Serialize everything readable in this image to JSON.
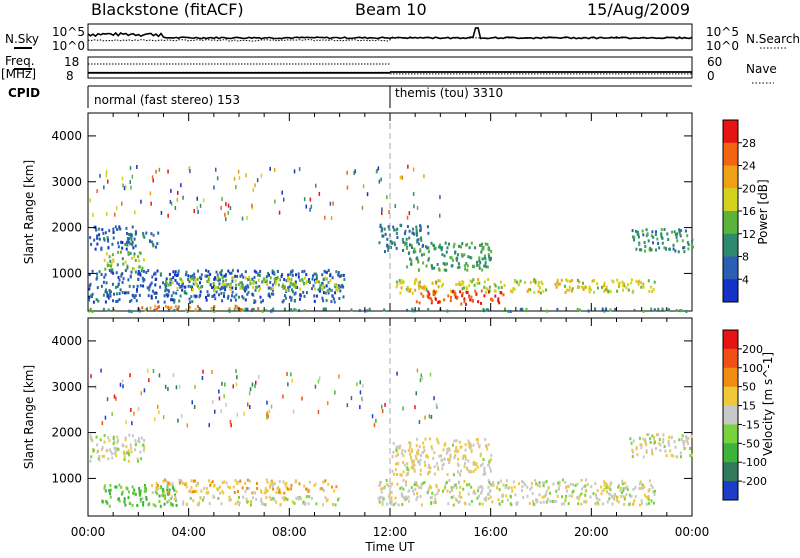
{
  "header": {
    "station": "Blackstone (fitACF)",
    "beam": "Beam 10",
    "date": "15/Aug/2009"
  },
  "noise_panel": {
    "left_label": "N.Sky",
    "right_label": "N.Search",
    "left_ticks": [
      "10^5",
      "10^0"
    ],
    "right_ticks": [
      "10^5",
      "10^0"
    ]
  },
  "freq_panel": {
    "left_label_top": "Freq.",
    "left_label_bottom": "[MHz]",
    "left_ticks": [
      "18",
      "8"
    ],
    "right_label": "Nave",
    "right_ticks": [
      "60",
      "0"
    ]
  },
  "cpid_panel": {
    "label": "CPID",
    "modes": [
      {
        "name": "normal (fast stereo) 153",
        "start_hour": 0
      },
      {
        "name": "themis (tou) 3310",
        "start_hour": 12
      }
    ]
  },
  "power_panel": {
    "ylabel": "Slant Range [km]",
    "yticks": [
      "1000",
      "2000",
      "3000",
      "4000"
    ],
    "colorbar_label": "Power [dB]",
    "colorbar_ticks": [
      "4",
      "8",
      "12",
      "16",
      "20",
      "24",
      "28"
    ],
    "colors": [
      "#1432c8",
      "#2a5fb4",
      "#2e8a6e",
      "#5ab43c",
      "#d2d21e",
      "#f0a014",
      "#f06414",
      "#e61414"
    ]
  },
  "velocity_panel": {
    "ylabel": "Slant Range [km]",
    "yticks": [
      "1000",
      "2000",
      "3000",
      "4000"
    ],
    "colorbar_label": "Velocity [m s^-1]",
    "colorbar_ticks": [
      "200",
      "100",
      "50",
      "15",
      "-15",
      "-50",
      "-100",
      "-200"
    ],
    "colors": [
      "#1e3cc8",
      "#2e7a5a",
      "#3cb43c",
      "#78d23c",
      "#c8c8c8",
      "#f0c83c",
      "#f08c14",
      "#f05014",
      "#e61414"
    ]
  },
  "time_axis": {
    "label": "Time UT",
    "ticks": [
      "00:00",
      "04:00",
      "08:00",
      "12:00",
      "16:00",
      "20:00",
      "00:00"
    ]
  },
  "chart_data": [
    {
      "type": "line",
      "title": "Blackstone (fitACF) Beam 10 15/Aug/2009",
      "series": [
        {
          "name": "N.Sky"
        },
        {
          "name": "N.Search"
        }
      ],
      "ylabel": "N.Sky",
      "xlim": [
        0,
        24
      ],
      "yscale": "log",
      "ylim": [
        1,
        100000
      ]
    },
    {
      "type": "line",
      "series": [
        {
          "name": "Freq.",
          "segments": [
            {
              "x": [
                0,
                12
              ],
              "y": 10
            },
            {
              "x": [
                12,
                24
              ],
              "y": 10.5
            }
          ]
        },
        {
          "name": "Nave",
          "segments": [
            {
              "x": [
                0,
                12
              ],
              "y": 45
            },
            {
              "x": [
                12,
                24
              ],
              "y": 8
            }
          ]
        }
      ],
      "ylim": [
        8,
        18
      ],
      "xlim": [
        0,
        24
      ]
    },
    {
      "type": "heatmap",
      "ylabel": "Slant Range [km]",
      "xlabel": "Time UT",
      "xlim": [
        0,
        24
      ],
      "ylim": [
        180,
        4500
      ],
      "colorbar": {
        "label": "Power [dB]",
        "range": [
          0,
          32
        ]
      },
      "regions": [
        {
          "t": [
            0.0,
            1.8
          ],
          "r": [
            1550,
            2050
          ],
          "v": 6
        },
        {
          "t": [
            0.6,
            2.2
          ],
          "r": [
            1100,
            1500
          ],
          "v": 14
        },
        {
          "t": [
            1.5,
            2.8
          ],
          "r": [
            1600,
            1950
          ],
          "v": 8
        },
        {
          "t": [
            0.0,
            10.2
          ],
          "r": [
            400,
            1100
          ],
          "v": 6
        },
        {
          "t": [
            3.0,
            10.0
          ],
          "r": [
            650,
            950
          ],
          "v": 16
        },
        {
          "t": [
            2.0,
            7.0
          ],
          "r": [
            230,
            320
          ],
          "v": 24
        },
        {
          "t": [
            11.5,
            13.5
          ],
          "r": [
            1500,
            2100
          ],
          "v": 8
        },
        {
          "t": [
            12.5,
            16.0
          ],
          "r": [
            1100,
            1700
          ],
          "v": 12
        },
        {
          "t": [
            12.2,
            22.5
          ],
          "r": [
            600,
            900
          ],
          "v": 18
        },
        {
          "t": [
            13.0,
            16.5
          ],
          "r": [
            350,
            650
          ],
          "v": 28
        },
        {
          "t": [
            21.5,
            24.0
          ],
          "r": [
            1500,
            2000
          ],
          "v": 10
        },
        {
          "t": [
            0.0,
            24.0
          ],
          "r": [
            200,
            260
          ],
          "v": 10
        }
      ]
    },
    {
      "type": "heatmap",
      "ylabel": "Slant Range [km]",
      "xlabel": "Time UT",
      "xlim": [
        0,
        24
      ],
      "ylim": [
        180,
        4500
      ],
      "colorbar": {
        "label": "Velocity [m s^-1]",
        "range": [
          -250,
          250
        ]
      },
      "regions": [
        {
          "t": [
            0.0,
            2.2
          ],
          "r": [
            1400,
            2000
          ],
          "v": 0
        },
        {
          "t": [
            0.5,
            3.5
          ],
          "r": [
            400,
            900
          ],
          "v": -80
        },
        {
          "t": [
            2.5,
            10.0
          ],
          "r": [
            700,
            1000
          ],
          "v": 60
        },
        {
          "t": [
            3.0,
            10.0
          ],
          "r": [
            450,
            650
          ],
          "v": 0
        },
        {
          "t": [
            11.5,
            22.5
          ],
          "r": [
            450,
            1000
          ],
          "v": 0
        },
        {
          "t": [
            12.0,
            16.0
          ],
          "r": [
            1100,
            1900
          ],
          "v": 20
        },
        {
          "t": [
            21.5,
            24.0
          ],
          "r": [
            1500,
            2000
          ],
          "v": 0
        }
      ]
    }
  ]
}
